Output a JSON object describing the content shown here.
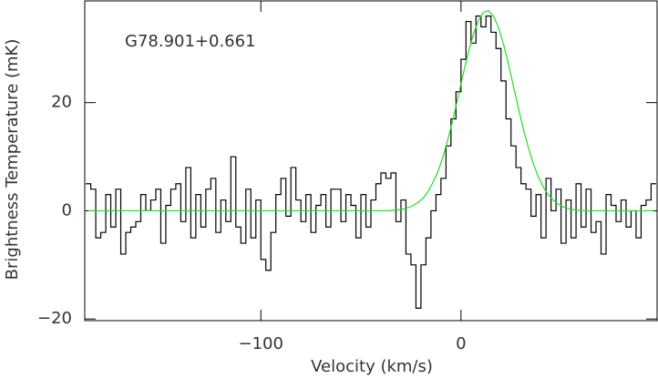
{
  "chart_data": {
    "type": "step-line",
    "annotation": "G78.901+0.661",
    "x_label": "Velocity (km/s)",
    "y_label": "Brightness Temperature (mK)",
    "xlim": [
      -188,
      98
    ],
    "ylim": [
      -20.3,
      38.8
    ],
    "xticks": [
      {
        "value": -100,
        "label": "−100"
      },
      0
    ],
    "yticks": [
      {
        "value": -20,
        "label": "−20"
      },
      0,
      20
    ],
    "x": [
      -186.25,
      -183.75,
      -181.25,
      -178.75,
      -176.25,
      -173.75,
      -171.25,
      -168.75,
      -166.25,
      -163.75,
      -161.25,
      -158.75,
      -156.25,
      -153.75,
      -151.25,
      -148.75,
      -146.25,
      -143.75,
      -141.25,
      -138.75,
      -136.25,
      -133.75,
      -131.25,
      -128.75,
      -126.25,
      -123.75,
      -121.25,
      -118.75,
      -116.25,
      -113.75,
      -111.25,
      -108.75,
      -106.25,
      -103.75,
      -101.25,
      -98.75,
      -96.25,
      -93.75,
      -91.25,
      -88.75,
      -86.25,
      -83.75,
      -81.25,
      -78.75,
      -76.25,
      -73.75,
      -71.25,
      -68.75,
      -66.25,
      -63.75,
      -61.25,
      -58.75,
      -56.25,
      -53.75,
      -51.25,
      -48.75,
      -46.25,
      -43.75,
      -41.25,
      -38.75,
      -36.25,
      -33.75,
      -31.25,
      -28.75,
      -26.25,
      -23.75,
      -21.25,
      -18.75,
      -16.25,
      -13.75,
      -11.25,
      -8.75,
      -6.25,
      -3.75,
      -1.25,
      1.25,
      3.75,
      6.25,
      8.75,
      11.25,
      13.75,
      16.25,
      18.75,
      21.25,
      23.75,
      26.25,
      28.75,
      31.25,
      33.75,
      36.25,
      38.75,
      41.25,
      43.75,
      46.25,
      48.75,
      51.25,
      53.75,
      56.25,
      58.75,
      61.25,
      63.75,
      66.25,
      68.75,
      71.25,
      73.75,
      76.25,
      78.75,
      81.25,
      83.75,
      86.25,
      88.75,
      91.25,
      93.75,
      96.25
    ],
    "series": [
      {
        "color": "#000000",
        "values": [
          5,
          4,
          -5,
          -4,
          3,
          -3,
          4,
          -8,
          -4,
          -3,
          -2,
          3,
          0,
          2,
          4,
          -6,
          1,
          4,
          5,
          -2,
          8,
          -5,
          3,
          -3,
          4,
          6,
          -4,
          2,
          -2,
          10,
          -3,
          -6,
          4,
          -5,
          2,
          -9,
          -11,
          -4,
          3,
          6,
          -1,
          8,
          2,
          -2,
          3,
          -4,
          1,
          3,
          -3,
          4,
          4,
          -2,
          3,
          1,
          -5,
          3,
          -3,
          2,
          5,
          7,
          6,
          7,
          -2,
          2,
          -8,
          -10,
          -18,
          -10,
          -5,
          0,
          3,
          6,
          12,
          17,
          22,
          28,
          35,
          31,
          36,
          34,
          36,
          33,
          30,
          24,
          17,
          12,
          8,
          5,
          4,
          -1,
          3,
          -5,
          6,
          0,
          4,
          -6,
          2,
          -5,
          5,
          -3,
          4,
          -4,
          -2,
          -8,
          3,
          1,
          -2,
          2,
          -3,
          0,
          -5,
          1,
          2,
          5
        ]
      },
      {
        "color": "#22dd22",
        "values": [
          0,
          0,
          0,
          0,
          0,
          0,
          0,
          0,
          0,
          0,
          0,
          0,
          0,
          0,
          0,
          0,
          0,
          0,
          0,
          0,
          0,
          0,
          0,
          0,
          0,
          0,
          0,
          0,
          0,
          0,
          0,
          0,
          0,
          0,
          0,
          0,
          0,
          0,
          0,
          0,
          0,
          0,
          0,
          0,
          0,
          0,
          0,
          0,
          0,
          0,
          0,
          0,
          0,
          0,
          0,
          0,
          0,
          0,
          0,
          0,
          0,
          0.1,
          0.2,
          0.3,
          0.6,
          1.0,
          1.6,
          2.4,
          3.7,
          5.4,
          7.5,
          10.3,
          13.6,
          17.3,
          21.4,
          25.5,
          29.4,
          32.7,
          35.2,
          36.7,
          37.0,
          36.0,
          33.9,
          30.8,
          27.1,
          23.0,
          18.9,
          15.0,
          11.6,
          8.6,
          6.2,
          4.3,
          2.9,
          1.9,
          1.2,
          0.7,
          0.4,
          0.2,
          0.1,
          0,
          0,
          0,
          0,
          0,
          0,
          0,
          0,
          0,
          0,
          0,
          0,
          0,
          0,
          0
        ]
      }
    ]
  }
}
